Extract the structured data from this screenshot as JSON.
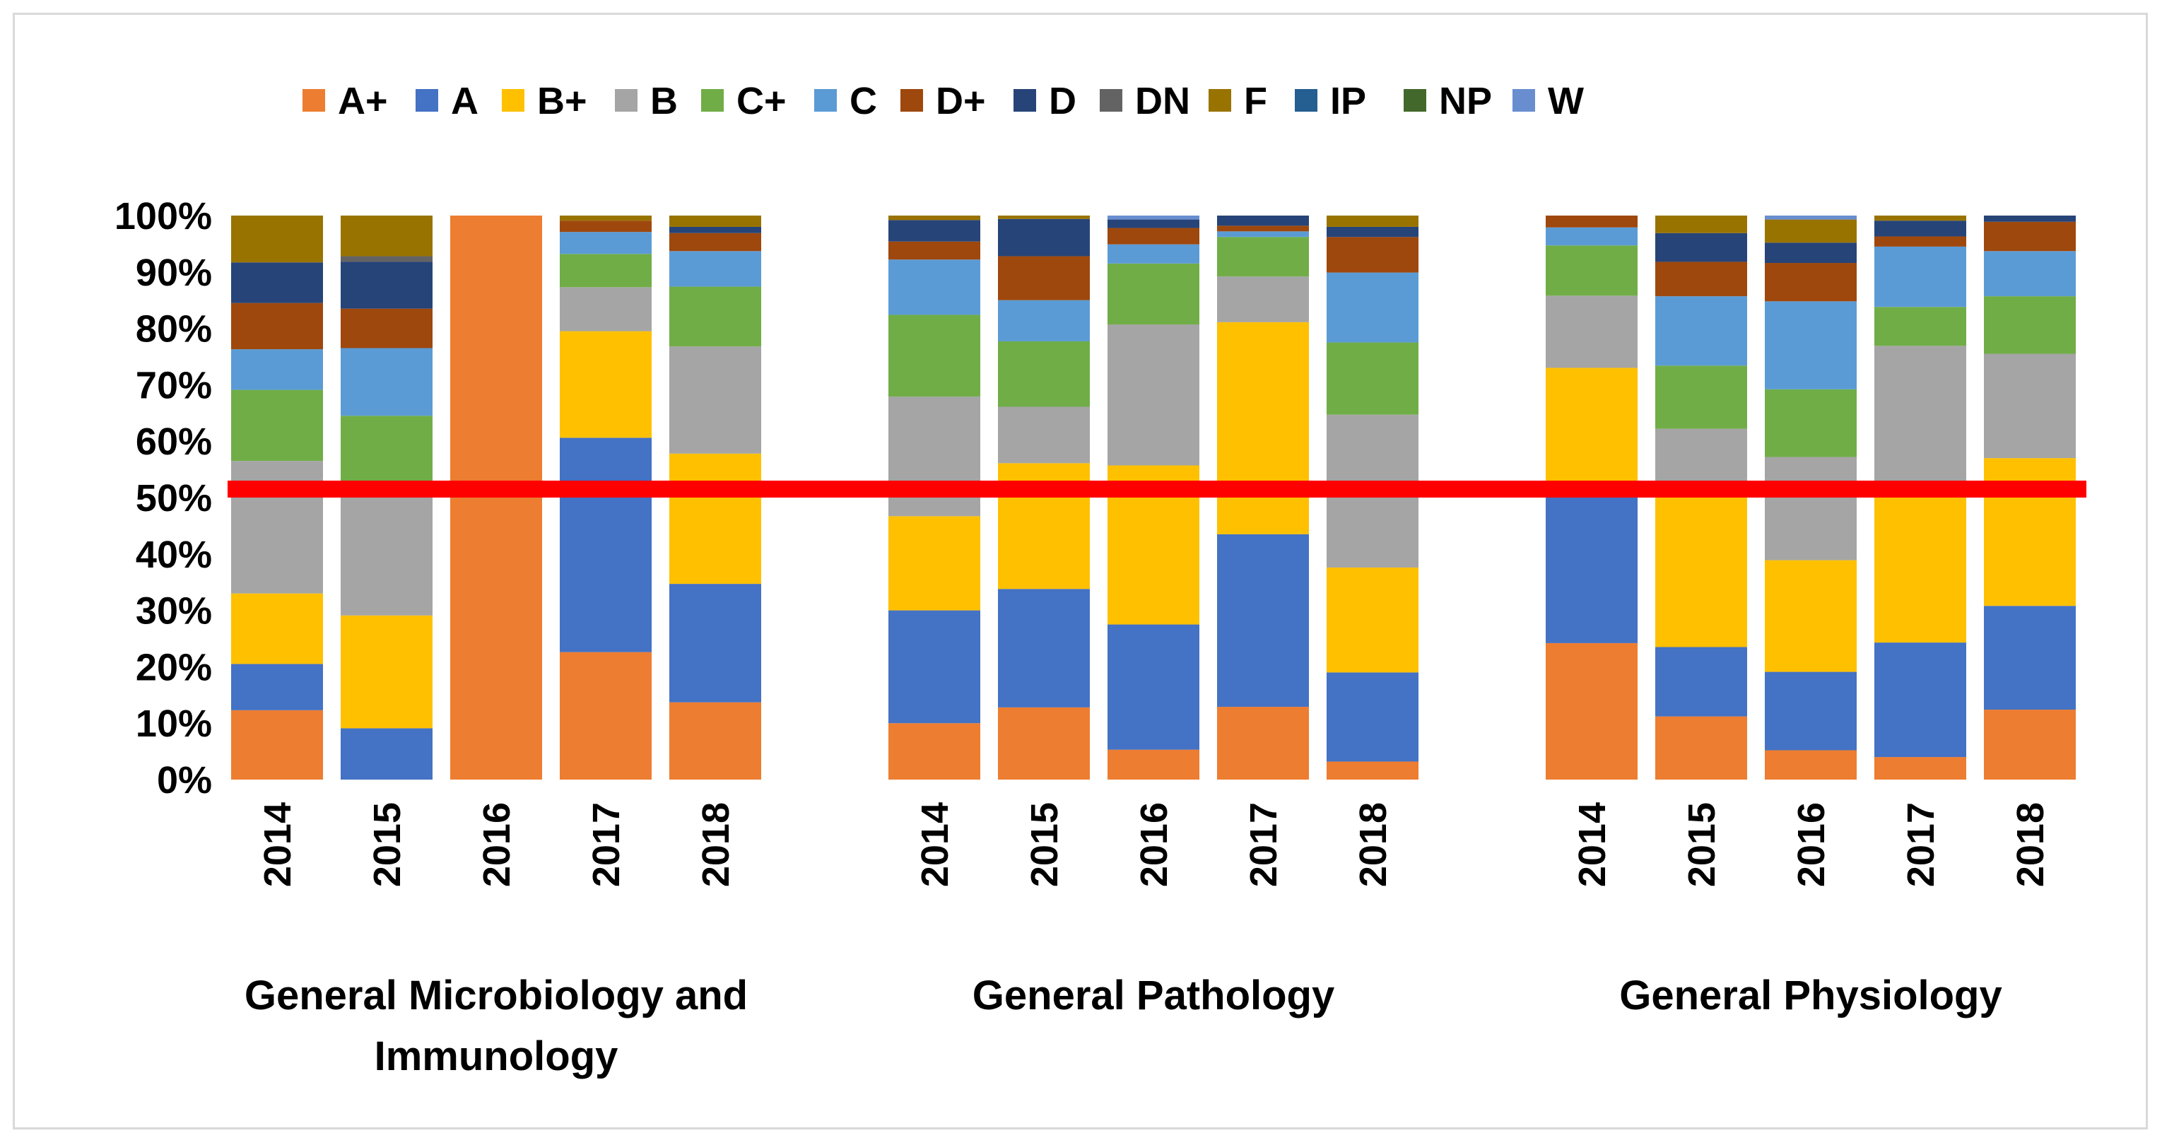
{
  "chart_data": {
    "type": "bar",
    "stacked": true,
    "percent_stacked": true,
    "title": "",
    "ylabel": "",
    "xlabel": "",
    "ylim": [
      0,
      100
    ],
    "yticks": [
      "0%",
      "10%",
      "20%",
      "30%",
      "40%",
      "50%",
      "60%",
      "70%",
      "80%",
      "90%",
      "100%"
    ],
    "legend_position": "top",
    "grades": [
      "A+",
      "A",
      "B+",
      "B",
      "C+",
      "C",
      "D+",
      "D",
      "DN",
      "F",
      "IP",
      "NP",
      "W"
    ],
    "colors": {
      "A+": "#ED7D31",
      "A": "#4472C4",
      "B+": "#FFC000",
      "B": "#A5A5A5",
      "C+": "#70AD47",
      "C": "#5B9BD5",
      "D+": "#9E480E",
      "D": "#264478",
      "DN": "#636363",
      "F": "#997300",
      "IP": "#255E91",
      "NP": "#43682B",
      "W": "#698ED0"
    },
    "reference_line": {
      "value": 51.5,
      "color": "#FF0000"
    },
    "groups": [
      {
        "label": "General Microbiology and Immunology",
        "bars": [
          {
            "year": "2014",
            "values": {
              "A+": 12.3,
              "A": 8.2,
              "B+": 12.5,
              "B": 23.5,
              "C+": 12.6,
              "C": 7.2,
              "D+": 8.2,
              "D": 7.2,
              "DN": 0,
              "F": 8.3,
              "IP": 0,
              "NP": 0,
              "W": 0
            }
          },
          {
            "year": "2015",
            "values": {
              "A+": 0,
              "A": 9.1,
              "B+": 20.0,
              "B": 21.8,
              "C+": 13.6,
              "C": 12.0,
              "D+": 7.0,
              "D": 8.3,
              "DN": 1.0,
              "F": 7.2,
              "IP": 0,
              "NP": 0,
              "W": 0
            }
          },
          {
            "year": "2016",
            "values": {
              "A+": 100,
              "A": 0,
              "B+": 0,
              "B": 0,
              "C+": 0,
              "C": 0,
              "D+": 0,
              "D": 0,
              "DN": 0,
              "F": 0,
              "IP": 0,
              "NP": 0,
              "W": 0
            }
          },
          {
            "year": "2017",
            "values": {
              "A+": 22.6,
              "A": 38.0,
              "B+": 18.9,
              "B": 7.8,
              "C+": 5.9,
              "C": 3.9,
              "D+": 2.0,
              "D": 0,
              "DN": 0,
              "F": 0.9,
              "IP": 0,
              "NP": 0,
              "W": 0
            }
          },
          {
            "year": "2018",
            "values": {
              "A+": 13.7,
              "A": 21.0,
              "B+": 23.1,
              "B": 19.0,
              "C+": 10.6,
              "C": 6.3,
              "D+": 3.2,
              "D": 1.1,
              "DN": 0,
              "F": 2.0,
              "IP": 0,
              "NP": 0,
              "W": 0
            }
          }
        ]
      },
      {
        "label": "General Pathology",
        "bars": [
          {
            "year": "2014",
            "values": {
              "A+": 10.0,
              "A": 20.0,
              "B+": 16.7,
              "B": 21.2,
              "C+": 14.5,
              "C": 9.8,
              "D+": 3.2,
              "D": 3.8,
              "DN": 0,
              "F": 0.8,
              "IP": 0,
              "NP": 0,
              "W": 0
            }
          },
          {
            "year": "2015",
            "values": {
              "A+": 12.8,
              "A": 21.0,
              "B+": 22.3,
              "B": 10.0,
              "C+": 11.6,
              "C": 7.3,
              "D+": 7.8,
              "D": 6.6,
              "DN": 0,
              "F": 0.6,
              "IP": 0,
              "NP": 0,
              "W": 0
            }
          },
          {
            "year": "2016",
            "values": {
              "A+": 5.3,
              "A": 22.2,
              "B+": 28.2,
              "B": 25.0,
              "C+": 10.8,
              "C": 3.4,
              "D+": 2.9,
              "D": 1.5,
              "DN": 0,
              "F": 0,
              "IP": 0,
              "NP": 0,
              "W": 0.7
            }
          },
          {
            "year": "2017",
            "values": {
              "A+": 12.9,
              "A": 30.6,
              "B+": 37.6,
              "B": 8.1,
              "C+": 7.0,
              "C": 1.0,
              "D+": 1.0,
              "D": 1.8,
              "DN": 0,
              "F": 0,
              "IP": 0,
              "NP": 0,
              "W": 0
            }
          },
          {
            "year": "2018",
            "values": {
              "A+": 3.2,
              "A": 15.8,
              "B+": 18.6,
              "B": 27.1,
              "C+": 12.8,
              "C": 12.4,
              "D+": 6.3,
              "D": 1.8,
              "DN": 0,
              "F": 2.0,
              "IP": 0,
              "NP": 0,
              "W": 0
            }
          }
        ]
      },
      {
        "label": "General Physiology",
        "bars": [
          {
            "year": "2014",
            "values": {
              "A+": 24.2,
              "A": 28.0,
              "B+": 20.8,
              "B": 12.8,
              "C+": 8.9,
              "C": 3.2,
              "D+": 2.1,
              "D": 0,
              "DN": 0,
              "F": 0,
              "IP": 0,
              "NP": 0,
              "W": 0
            }
          },
          {
            "year": "2015",
            "values": {
              "A+": 11.2,
              "A": 12.3,
              "B+": 29.3,
              "B": 9.4,
              "C+": 11.2,
              "C": 12.3,
              "D+": 6.1,
              "D": 5.1,
              "DN": 0,
              "F": 3.1,
              "IP": 0,
              "NP": 0,
              "W": 0
            }
          },
          {
            "year": "2016",
            "values": {
              "A+": 5.2,
              "A": 13.9,
              "B+": 19.8,
              "B": 18.3,
              "C+": 12.0,
              "C": 15.6,
              "D+": 6.8,
              "D": 3.6,
              "DN": 0,
              "F": 4.1,
              "IP": 0,
              "NP": 0,
              "W": 0.7
            }
          },
          {
            "year": "2017",
            "values": {
              "A+": 4.0,
              "A": 20.3,
              "B+": 26.7,
              "B": 25.9,
              "C+": 6.9,
              "C": 10.7,
              "D+": 1.8,
              "D": 2.8,
              "DN": 0,
              "F": 0.9,
              "IP": 0,
              "NP": 0,
              "W": 0
            }
          },
          {
            "year": "2018",
            "values": {
              "A+": 12.4,
              "A": 18.4,
              "B+": 26.2,
              "B": 18.5,
              "C+": 10.2,
              "C": 8.0,
              "D+": 5.2,
              "D": 1.1,
              "DN": 0,
              "F": 0,
              "IP": 0,
              "NP": 0,
              "W": 0
            }
          }
        ]
      }
    ]
  }
}
